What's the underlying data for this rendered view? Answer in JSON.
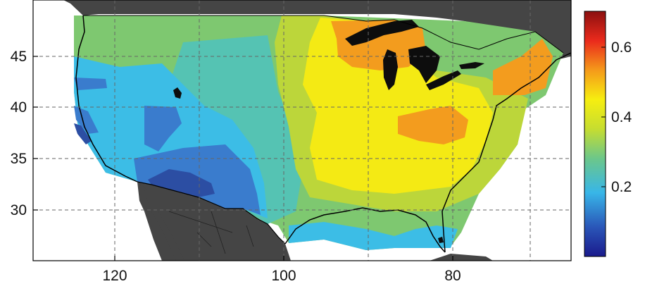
{
  "map": {
    "lon_ticks": [
      "120",
      "100",
      "80"
    ],
    "lat_ticks": [
      "45",
      "40",
      "35",
      "30"
    ],
    "grid": "dashed"
  },
  "colorbar": {
    "ticks": [
      "0.6",
      "0.4",
      "0.2"
    ],
    "range": [
      0,
      0.7
    ],
    "colormap": "jet"
  },
  "colors": {
    "land_outside": "#454545",
    "water_lakes": "#0d0d0d",
    "ocean": "#ffffff",
    "dark_blue": "#2c4ea3",
    "blue": "#3a7ccd",
    "light_blue": "#3cbde6",
    "teal": "#55c3b3",
    "green": "#7ec870",
    "yellow_green": "#bcd63a",
    "yellow": "#f4ea14",
    "orange": "#f39c1e"
  }
}
